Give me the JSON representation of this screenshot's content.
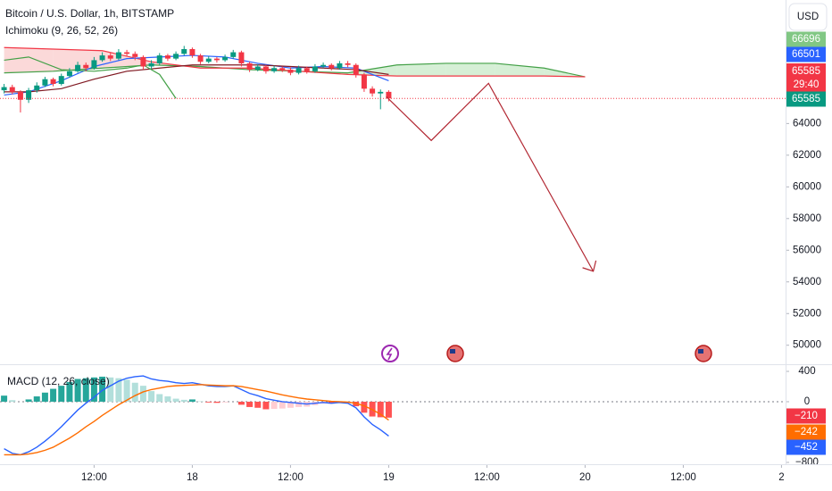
{
  "chart_data": [
    {
      "type": "candlestick",
      "title": "Bitcoin / U.S. Dollar, 1h, BITSTAMP",
      "indicator": "Ichimoku (9, 26, 52, 26)",
      "currency": "USD",
      "x": [
        1,
        2,
        3,
        4,
        5,
        6,
        7,
        8,
        9,
        10,
        11,
        12,
        13,
        14,
        15,
        16,
        17,
        18,
        19,
        20,
        21,
        22,
        23,
        24,
        25,
        26,
        27,
        28,
        29,
        30,
        31,
        32,
        33,
        34,
        35,
        36,
        37,
        38,
        39,
        40,
        41,
        42,
        43,
        44,
        45,
        46,
        47,
        48
      ],
      "open": [
        66100,
        66300,
        66000,
        65500,
        66100,
        66400,
        66800,
        66500,
        67000,
        67300,
        67700,
        67500,
        68000,
        68300,
        68100,
        68500,
        68400,
        68200,
        67600,
        67800,
        68300,
        68100,
        68400,
        68700,
        68300,
        67900,
        68100,
        68000,
        68200,
        68500,
        67800,
        67400,
        67600,
        67300,
        67500,
        67400,
        67200,
        67500,
        67300,
        67600,
        67700,
        67500,
        67800,
        67700,
        67100,
        66200,
        65900,
        66000
      ],
      "high": [
        66500,
        66450,
        66100,
        66250,
        66600,
        66950,
        66900,
        67150,
        67500,
        67900,
        67850,
        68200,
        68500,
        68450,
        68700,
        68650,
        68550,
        68300,
        68000,
        68450,
        68400,
        68550,
        68900,
        68800,
        68400,
        68250,
        68200,
        68350,
        68650,
        68600,
        67900,
        67750,
        67700,
        67650,
        67600,
        67550,
        67650,
        67600,
        67750,
        67850,
        67800,
        67950,
        67950,
        67800,
        67200,
        66350,
        66150,
        66100
      ],
      "low": [
        65900,
        65850,
        64700,
        65300,
        65950,
        66300,
        66350,
        66400,
        66900,
        67200,
        67300,
        67400,
        67900,
        67950,
        68000,
        68250,
        68000,
        67400,
        67450,
        67700,
        67950,
        68000,
        68300,
        68150,
        67750,
        67800,
        67850,
        67900,
        68100,
        67600,
        67250,
        67300,
        67150,
        67200,
        67250,
        67050,
        67100,
        67150,
        67200,
        67500,
        67350,
        67400,
        67550,
        66900,
        66000,
        65700,
        64900,
        65400
      ],
      "close": [
        66300,
        66000,
        65500,
        66100,
        66400,
        66800,
        66500,
        67000,
        67300,
        67700,
        67500,
        68000,
        68300,
        68100,
        68500,
        68400,
        68200,
        67600,
        67800,
        68300,
        68100,
        68400,
        68700,
        68300,
        67900,
        68100,
        68000,
        68200,
        68500,
        67800,
        67400,
        67600,
        67300,
        67500,
        67400,
        67200,
        67500,
        67300,
        67600,
        67700,
        67500,
        67800,
        67700,
        67100,
        66200,
        65900,
        66000,
        65585
      ],
      "up_color": "#089981",
      "down_color": "#f23645",
      "series": [
        {
          "color": "#2962ff",
          "x": [
            1,
            4,
            8,
            12,
            16,
            20,
            24,
            28,
            32,
            36,
            40,
            44,
            48
          ],
          "values": [
            65800,
            66000,
            66700,
            67600,
            68100,
            68200,
            68300,
            68200,
            67800,
            67500,
            67600,
            67500,
            66700
          ]
        },
        {
          "color": "#801922",
          "x": [
            1,
            4,
            8,
            12,
            16,
            20,
            24,
            28,
            32,
            36,
            40,
            44,
            48
          ],
          "values": [
            66000,
            66000,
            66200,
            66800,
            67300,
            67500,
            67700,
            67700,
            67700,
            67600,
            67500,
            67400,
            67100
          ]
        },
        {
          "color": "#43a047",
          "x": [
            1,
            4,
            8,
            12,
            16,
            18,
            20,
            22
          ],
          "values": [
            68000,
            68200,
            67400,
            67300,
            67500,
            67700,
            67100,
            65585
          ]
        }
      ],
      "cloud": {
        "x": [
          1,
          7,
          13,
          19,
          25,
          31,
          37,
          43,
          49,
          55,
          61,
          67,
          72
        ],
        "series": [
          {
            "color": "#43a047",
            "values": [
              67200,
              67300,
              67500,
              67700,
              67600,
              67400,
              67300,
              67200,
              67700,
              67800,
              67800,
              67500,
              66950
            ]
          },
          {
            "color": "#f23645",
            "values": [
              68800,
              68700,
              68600,
              67900,
              67500,
              67500,
              67300,
              67100,
              67000,
              67000,
              67000,
              67000,
              66950
            ]
          }
        ],
        "fill_up": "#d6efd6",
        "fill_down": "#fbd9d9"
      },
      "drawing": {
        "color": "#b22833",
        "x": [
          47.7,
          53.2,
          60.2,
          73
        ],
        "values": [
          65700,
          62930,
          66540,
          54670
        ]
      },
      "price_labels": [
        {
          "value": 66696,
          "color": "#81c784"
        },
        {
          "value": 66501,
          "color": "#2962ff"
        },
        {
          "value": 65585,
          "color": "#f23645",
          "countdown": "29:40"
        },
        {
          "value": 65585,
          "color": "#089981"
        }
      ],
      "xlim": [
        0.5,
        96.5
      ],
      "xticks": [
        {
          "value": 12,
          "label": "12:00"
        },
        {
          "value": 24,
          "label": "18"
        },
        {
          "value": 36,
          "label": "12:00"
        },
        {
          "value": 48,
          "label": "19"
        },
        {
          "value": 60,
          "label": "12:00"
        },
        {
          "value": 72,
          "label": "20"
        },
        {
          "value": 84,
          "label": "12:00"
        },
        {
          "value": 96,
          "label": "2"
        }
      ],
      "ylim": [
        48800,
        71800
      ],
      "yticks": [
        50000,
        52000,
        54000,
        56000,
        58000,
        60000,
        62000,
        64000
      ]
    },
    {
      "type": "macd",
      "title": "MACD (12, 26, close)",
      "series": [
        {
          "color": "#2962ff",
          "values": [
            -620,
            -680,
            -700,
            -660,
            -600,
            -520,
            -430,
            -330,
            -220,
            -110,
            -20,
            60,
            150,
            210,
            270,
            310,
            330,
            340,
            300,
            280,
            270,
            250,
            240,
            250,
            230,
            210,
            200,
            200,
            210,
            160,
            110,
            80,
            40,
            20,
            0,
            -10,
            -20,
            -30,
            -20,
            -10,
            -20,
            -10,
            -20,
            -80,
            -200,
            -300,
            -370,
            -452
          ]
        },
        {
          "color": "#ff6d00",
          "values": [
            -700,
            -700,
            -700,
            -690,
            -670,
            -640,
            -600,
            -540,
            -480,
            -410,
            -330,
            -260,
            -180,
            -110,
            -40,
            20,
            80,
            130,
            160,
            180,
            200,
            210,
            215,
            220,
            225,
            220,
            215,
            210,
            210,
            200,
            180,
            160,
            140,
            115,
            90,
            70,
            50,
            35,
            25,
            15,
            5,
            0,
            -5,
            -20,
            -55,
            -105,
            -165,
            -242
          ]
        }
      ],
      "histogram": [
        80,
        20,
        0,
        30,
        70,
        120,
        170,
        210,
        260,
        300,
        310,
        320,
        330,
        320,
        310,
        290,
        250,
        210,
        140,
        100,
        70,
        40,
        25,
        30,
        5,
        -10,
        -15,
        -10,
        0,
        -40,
        -70,
        -80,
        -100,
        -95,
        -90,
        -80,
        -70,
        -65,
        -45,
        -25,
        -25,
        -10,
        -15,
        -60,
        -145,
        -195,
        -205,
        -210
      ],
      "histogram_colors": {
        "up_rising": "#26a69a",
        "up_falling": "#b2dfdb",
        "down_falling": "#ff5252",
        "down_rising": "#ffcdd2"
      },
      "last_labels": [
        {
          "value": -210,
          "label": "−210",
          "color": "#f23645"
        },
        {
          "value": -242,
          "label": "−242",
          "color": "#ff6d00"
        },
        {
          "value": -452,
          "label": "−452",
          "color": "#2962ff"
        }
      ],
      "zero_line": true,
      "ylim": [
        -824,
        494
      ],
      "yticks": [
        {
          "value": -800,
          "label": "−800"
        },
        0,
        400
      ]
    }
  ]
}
